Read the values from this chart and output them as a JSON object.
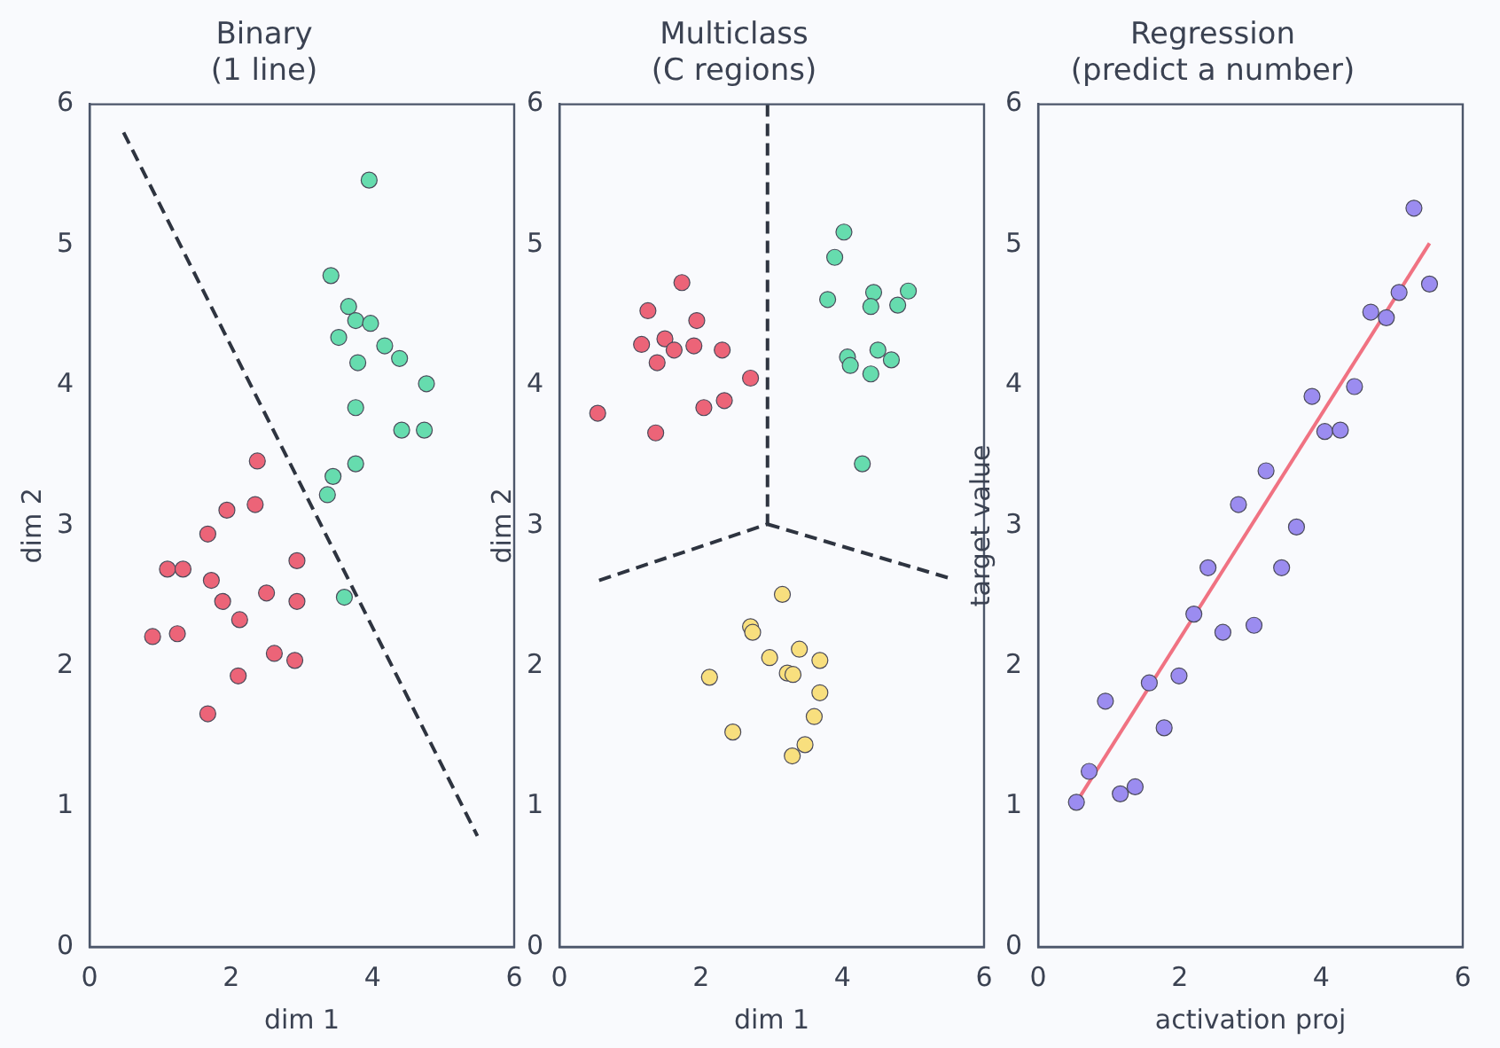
{
  "chart_data": [
    {
      "type": "scatter",
      "title": "Binary\n(1 line)",
      "xlabel": "dim 1",
      "ylabel": "dim 2",
      "xlim": [
        0,
        6
      ],
      "ylim": [
        0,
        6
      ],
      "xticks": [
        0,
        2,
        4,
        6
      ],
      "yticks": [
        0,
        1,
        2,
        3,
        4,
        5,
        6
      ],
      "grid": false,
      "legend": false,
      "marker": "circle",
      "series": [
        {
          "type": "scatter",
          "color": "#ec6478",
          "x": [
            2.37,
            1.94,
            2.34,
            1.67,
            1.1,
            1.32,
            1.72,
            1.88,
            2.5,
            2.93,
            2.93,
            2.12,
            0.89,
            1.24,
            2.61,
            2.9,
            2.1,
            1.67
          ],
          "values": [
            3.46,
            3.11,
            3.15,
            2.94,
            2.69,
            2.69,
            2.61,
            2.46,
            2.52,
            2.75,
            2.46,
            2.33,
            2.21,
            2.23,
            2.09,
            2.04,
            1.93,
            1.66
          ]
        },
        {
          "type": "scatter",
          "color": "#66dcae",
          "x": [
            3.95,
            3.41,
            3.66,
            3.76,
            3.97,
            3.52,
            4.17,
            4.38,
            3.79,
            4.76,
            3.76,
            4.41,
            4.73,
            3.76,
            3.44,
            3.36,
            3.6
          ],
          "values": [
            5.46,
            4.78,
            4.56,
            4.46,
            4.44,
            4.34,
            4.28,
            4.19,
            4.16,
            4.01,
            3.84,
            3.68,
            3.68,
            3.44,
            3.35,
            3.22,
            2.49
          ]
        },
        {
          "type": "line",
          "line_style": "dashed",
          "marker": "none",
          "color": "#2e3440",
          "x": [
            0.48,
            5.48
          ],
          "values": [
            5.8,
            0.79
          ]
        }
      ]
    },
    {
      "type": "scatter",
      "title": "Multiclass\n(C regions)",
      "xlabel": "dim 1",
      "ylabel": "dim 2",
      "xlim": [
        0,
        6
      ],
      "ylim": [
        0,
        6
      ],
      "xticks": [
        0,
        2,
        4,
        6
      ],
      "yticks": [
        0,
        1,
        2,
        3,
        4,
        5,
        6
      ],
      "grid": false,
      "legend": false,
      "marker": "circle",
      "series": [
        {
          "type": "scatter",
          "color": "#ec6478",
          "x": [
            1.73,
            1.25,
            1.94,
            1.16,
            1.49,
            1.62,
            1.9,
            1.38,
            2.3,
            2.7,
            2.33,
            2.04,
            0.54,
            1.36
          ],
          "values": [
            4.73,
            4.53,
            4.46,
            4.29,
            4.33,
            4.25,
            4.28,
            4.16,
            4.25,
            4.05,
            3.89,
            3.84,
            3.8,
            3.66
          ]
        },
        {
          "type": "scatter",
          "color": "#66dcae",
          "x": [
            4.02,
            3.89,
            3.79,
            4.44,
            4.4,
            4.93,
            4.78,
            4.07,
            4.11,
            4.5,
            4.69,
            4.4,
            4.28
          ],
          "values": [
            5.09,
            4.91,
            4.61,
            4.66,
            4.56,
            4.67,
            4.57,
            4.2,
            4.14,
            4.25,
            4.18,
            4.08,
            3.44
          ]
        },
        {
          "type": "scatter",
          "color": "#f8df7e",
          "x": [
            3.15,
            2.7,
            2.73,
            3.39,
            2.97,
            3.68,
            3.22,
            3.3,
            2.12,
            3.68,
            3.6,
            2.45,
            3.47,
            3.29
          ],
          "values": [
            2.51,
            2.28,
            2.24,
            2.12,
            2.06,
            2.04,
            1.95,
            1.94,
            1.92,
            1.81,
            1.64,
            1.53,
            1.44,
            1.36
          ]
        },
        {
          "type": "line",
          "line_style": "dashed",
          "marker": "none",
          "color": "#2e3440",
          "x": [
            2.94,
            2.94
          ],
          "values": [
            6,
            3.01
          ]
        },
        {
          "type": "line",
          "line_style": "dashed",
          "marker": "none",
          "color": "#2e3440",
          "x": [
            0.56,
            2.94
          ],
          "values": [
            2.61,
            3.01
          ]
        },
        {
          "type": "line",
          "line_style": "dashed",
          "marker": "none",
          "color": "#2e3440",
          "x": [
            2.94,
            5.55
          ],
          "values": [
            3.01,
            2.62
          ]
        }
      ]
    },
    {
      "type": "scatter",
      "title": "Regression\n(predict a number)",
      "xlabel": "activation proj",
      "ylabel": "target value",
      "xlim": [
        0,
        6
      ],
      "ylim": [
        0,
        6
      ],
      "xticks": [
        0,
        2,
        4,
        6
      ],
      "yticks": [
        0,
        1,
        2,
        3,
        4,
        5,
        6
      ],
      "grid": false,
      "legend": false,
      "marker": "circle",
      "series": [
        {
          "type": "scatter",
          "color": "#9b8cf0",
          "x": [
            0.54,
            0.72,
            0.95,
            1.16,
            1.37,
            1.57,
            1.78,
            1.99,
            2.2,
            2.4,
            2.61,
            2.83,
            3.05,
            3.22,
            3.44,
            3.65,
            3.87,
            4.05,
            4.27,
            4.47,
            4.7,
            4.92,
            5.1,
            5.31,
            5.53
          ],
          "values": [
            1.03,
            1.25,
            1.75,
            1.09,
            1.14,
            1.88,
            1.56,
            1.93,
            2.37,
            2.7,
            2.24,
            3.15,
            2.29,
            3.39,
            2.7,
            2.99,
            3.92,
            3.67,
            3.68,
            3.99,
            4.52,
            4.48,
            4.66,
            5.26,
            4.72
          ]
        },
        {
          "type": "line",
          "line_style": "solid",
          "marker": "none",
          "color": "#f07282",
          "x": [
            0.54,
            5.53
          ],
          "values": [
            1.03,
            5.01
          ]
        }
      ]
    }
  ]
}
